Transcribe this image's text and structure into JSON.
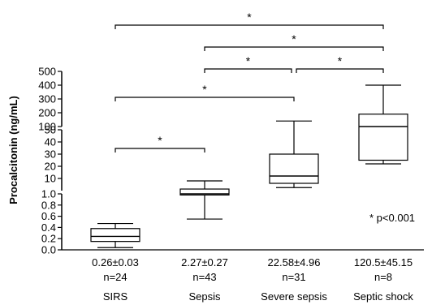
{
  "chart_data": {
    "type": "box",
    "ylabel": "Procalcitonin (ng/mL)",
    "y_axis": {
      "scale": "broken",
      "segments": [
        {
          "range": [
            0.0,
            1.0
          ],
          "ticks": [
            "0.0",
            "0.2",
            "0.4",
            "0.6",
            "0.8",
            "1.0"
          ]
        },
        {
          "range": [
            0,
            50
          ],
          "ticks": [
            "10",
            "20",
            "30",
            "40",
            "50"
          ]
        },
        {
          "range": [
            100,
            500
          ],
          "ticks": [
            "100",
            "200",
            "300",
            "400",
            "500"
          ]
        }
      ]
    },
    "groups": [
      {
        "name": "SIRS",
        "value": "0.26±0.03",
        "n": "n=24",
        "whisker_low": 0.04,
        "q1": 0.15,
        "median": 0.24,
        "q3": 0.38,
        "whisker_high": 0.47
      },
      {
        "name": "Sepsis",
        "value": "2.27±0.27",
        "n": "n=43",
        "whisker_low": 0.55,
        "q1": 0.98,
        "median": 1.0,
        "q3": 1.3,
        "whisker_high": 8
      },
      {
        "name": "Severe sepsis",
        "value": "22.58±4.96",
        "n": "n=31",
        "whisker_low": 2.5,
        "q1": 6,
        "median": 12,
        "q3": 30,
        "whisker_high": 140
      },
      {
        "name": "Septic shock",
        "value": "120.5±45.15",
        "n": "n=8",
        "whisker_low": 22,
        "q1": 25,
        "median": 100,
        "q3": 190,
        "whisker_high": 400
      }
    ],
    "significance_brackets": [
      {
        "from": "SIRS",
        "to": "Septic shock",
        "label": "*"
      },
      {
        "from": "Sepsis",
        "to": "Septic shock",
        "label": "*"
      },
      {
        "from": "Sepsis",
        "to": "Severe sepsis",
        "label": "*"
      },
      {
        "from": "Severe sepsis",
        "to": "Septic shock",
        "label": "*"
      },
      {
        "from": "SIRS",
        "to": "Severe sepsis",
        "label": "*"
      },
      {
        "from": "SIRS",
        "to": "Sepsis",
        "label": "*"
      }
    ],
    "annotation": "* p<0.001"
  }
}
